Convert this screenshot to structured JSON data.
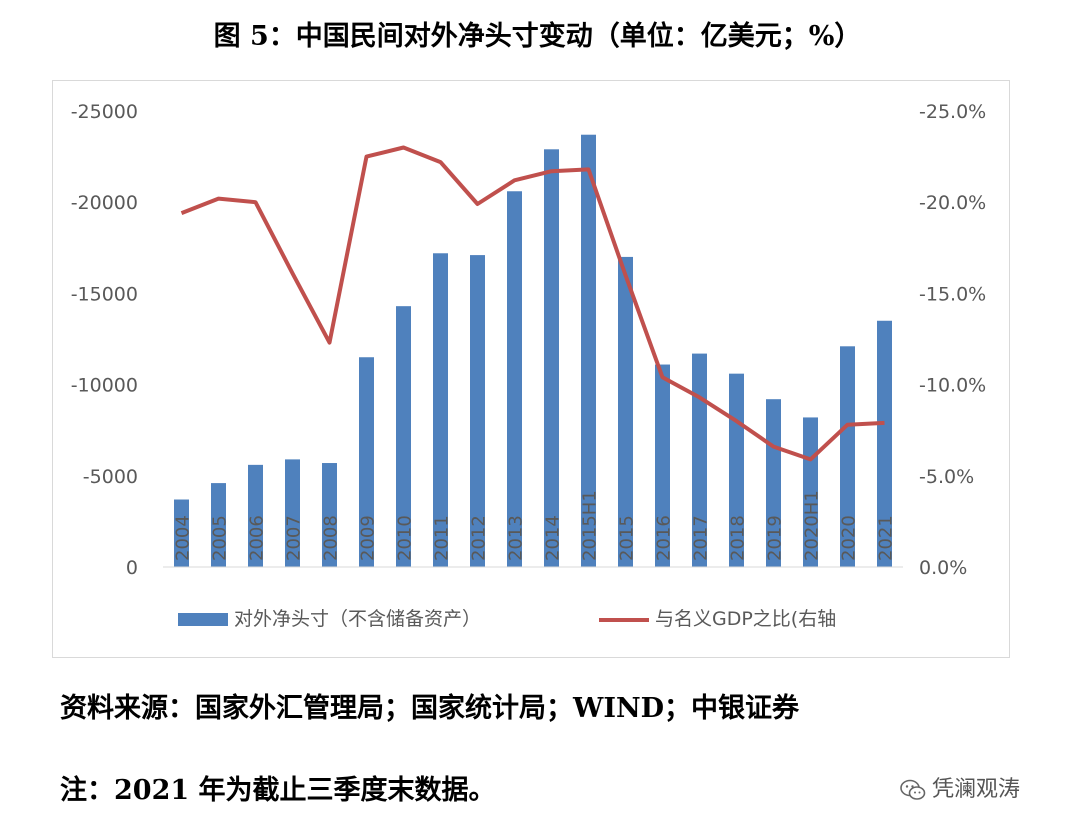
{
  "title": "图 5：中国民间对外净头寸变动（单位：亿美元；%）",
  "source": "资料来源：国家外汇管理局；国家统计局；WIND；中银证券",
  "note": "注：2021 年为截止三季度末数据。",
  "watermark": "凭澜观涛",
  "watermark_icon": "wechat-icon",
  "chart_data": {
    "type": "bar+line",
    "categories": [
      "2004",
      "2005",
      "2006",
      "2007",
      "2008",
      "2009",
      "2010",
      "2011",
      "2012",
      "2013",
      "2014",
      "2015H1",
      "2015",
      "2016",
      "2017",
      "2018",
      "2019",
      "2020H1",
      "2020",
      "2021"
    ],
    "series": [
      {
        "name": "对外净头寸（不含储备资产）",
        "type": "bar",
        "axis": "left",
        "color": "#4F81BD",
        "values": [
          -3700,
          -4600,
          -5600,
          -5900,
          -5700,
          -11500,
          -14300,
          -17200,
          -17100,
          -20600,
          -22900,
          -23700,
          -17000,
          -11100,
          -11700,
          -10600,
          -9200,
          -8200,
          -12100,
          -13500
        ]
      },
      {
        "name": "与名义GDP之比(右轴",
        "type": "line",
        "axis": "right",
        "color": "#C0504D",
        "values": [
          -19.4,
          -20.2,
          -20.0,
          -16.1,
          -12.3,
          -22.5,
          -23.0,
          -22.2,
          -19.9,
          -21.2,
          -21.7,
          -21.8,
          -16.0,
          -10.4,
          -9.3,
          -8.0,
          -6.6,
          -5.9,
          -7.8,
          -7.9
        ]
      }
    ],
    "y_left": {
      "ticks": [
        "-25000",
        "-20000",
        "-15000",
        "-10000",
        "-5000",
        "0"
      ],
      "range": [
        0,
        -25000
      ],
      "inverted": true
    },
    "y_right": {
      "ticks": [
        "-25.0%",
        "-20.0%",
        "-15.0%",
        "-10.0%",
        "-5.0%",
        "0.0%"
      ],
      "range": [
        0,
        -25
      ],
      "inverted": true
    },
    "legend": [
      "对外净头寸（不含储备资产）",
      "与名义GDP之比(右轴"
    ],
    "legend_position": "bottom",
    "grid": false
  }
}
